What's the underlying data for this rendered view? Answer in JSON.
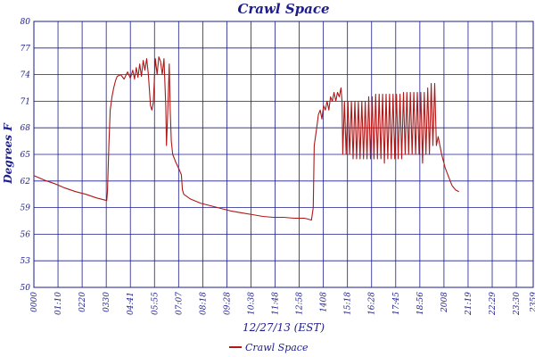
{
  "chart_data": {
    "type": "line",
    "title": "Crawl Space",
    "xlabel": "12/27/13 (EST)",
    "ylabel": "Degrees F",
    "ylim": [
      50,
      80
    ],
    "yticks": [
      50,
      53,
      56,
      59,
      62,
      65,
      68,
      71,
      74,
      77,
      80
    ],
    "xlim": [
      "0000",
      "2359"
    ],
    "xticks": [
      "0000",
      "01:10",
      "0220",
      "0330",
      "04:41",
      "05:55",
      "07:07",
      "08:18",
      "09:28",
      "10:38",
      "11:48",
      "12:58",
      "1408",
      "15:18",
      "16:28",
      "17:45",
      "18:56",
      "2008",
      "21:19",
      "22:29",
      "23:30",
      "2359"
    ],
    "grid": true,
    "legend_position": "bottom",
    "colors": {
      "series": "#b01818",
      "grid": "#1c1c8c",
      "text": "#1c1c8c"
    },
    "series": [
      {
        "name": "Crawl Space",
        "points": [
          [
            0,
            62.6
          ],
          [
            30,
            62.1
          ],
          [
            60,
            61.7
          ],
          [
            90,
            61.2
          ],
          [
            120,
            60.8
          ],
          [
            150,
            60.5
          ],
          [
            180,
            60.1
          ],
          [
            200,
            59.9
          ],
          [
            210,
            59.8
          ],
          [
            212,
            60.8
          ],
          [
            216,
            66
          ],
          [
            220,
            70
          ],
          [
            225,
            71.5
          ],
          [
            230,
            72.5
          ],
          [
            235,
            73.3
          ],
          [
            240,
            73.8
          ],
          [
            250,
            74
          ],
          [
            260,
            73.5
          ],
          [
            265,
            73.9
          ],
          [
            270,
            74.3
          ],
          [
            278,
            73.6
          ],
          [
            285,
            74.5
          ],
          [
            290,
            73.5
          ],
          [
            295,
            74.8
          ],
          [
            300,
            73.7
          ],
          [
            305,
            75.2
          ],
          [
            310,
            73.8
          ],
          [
            315,
            75.6
          ],
          [
            320,
            74.5
          ],
          [
            325,
            75.8
          ],
          [
            330,
            74
          ],
          [
            336,
            70.5
          ],
          [
            340,
            70
          ],
          [
            344,
            70.8
          ],
          [
            350,
            75.8
          ],
          [
            355,
            74
          ],
          [
            360,
            76
          ],
          [
            365,
            75.5
          ],
          [
            370,
            74
          ],
          [
            375,
            75.8
          ],
          [
            380,
            70.5
          ],
          [
            382,
            66
          ],
          [
            386,
            70
          ],
          [
            390,
            75.2
          ],
          [
            393,
            70
          ],
          [
            396,
            66.5
          ],
          [
            400,
            65
          ],
          [
            410,
            64
          ],
          [
            420,
            63.2
          ],
          [
            425,
            62.7
          ],
          [
            428,
            61
          ],
          [
            432,
            60.5
          ],
          [
            450,
            60
          ],
          [
            480,
            59.5
          ],
          [
            510,
            59.2
          ],
          [
            540,
            58.9
          ],
          [
            570,
            58.6
          ],
          [
            600,
            58.4
          ],
          [
            630,
            58.2
          ],
          [
            660,
            58.0
          ],
          [
            690,
            57.9
          ],
          [
            720,
            57.9
          ],
          [
            750,
            57.8
          ],
          [
            780,
            57.8
          ],
          [
            800,
            57.6
          ],
          [
            805,
            59
          ],
          [
            808,
            66
          ],
          [
            815,
            68
          ],
          [
            820,
            69.5
          ],
          [
            825,
            70
          ],
          [
            830,
            69
          ],
          [
            835,
            70.5
          ],
          [
            840,
            70
          ],
          [
            845,
            71
          ],
          [
            850,
            70
          ],
          [
            855,
            71.5
          ],
          [
            860,
            71
          ],
          [
            865,
            72
          ],
          [
            870,
            71
          ],
          [
            875,
            72
          ],
          [
            880,
            71.5
          ],
          [
            885,
            72.5
          ],
          [
            888,
            71
          ],
          [
            890,
            65
          ],
          [
            895,
            71
          ],
          [
            900,
            65
          ],
          [
            905,
            71
          ],
          [
            910,
            65
          ],
          [
            915,
            71
          ],
          [
            920,
            64.5
          ],
          [
            925,
            71
          ],
          [
            930,
            64.5
          ],
          [
            935,
            71
          ],
          [
            940,
            64.5
          ],
          [
            945,
            71
          ],
          [
            950,
            64.5
          ],
          [
            955,
            71
          ],
          [
            960,
            64.5
          ],
          [
            965,
            71.5
          ],
          [
            970,
            64.5
          ],
          [
            975,
            71.5
          ],
          [
            980,
            64.5
          ],
          [
            985,
            71.8
          ],
          [
            990,
            64.5
          ],
          [
            995,
            71.8
          ],
          [
            1000,
            64.5
          ],
          [
            1005,
            71.8
          ],
          [
            1010,
            64
          ],
          [
            1015,
            71.8
          ],
          [
            1020,
            64.5
          ],
          [
            1025,
            71.8
          ],
          [
            1030,
            64.5
          ],
          [
            1035,
            71.8
          ],
          [
            1040,
            64.5
          ],
          [
            1045,
            71.8
          ],
          [
            1050,
            64.5
          ],
          [
            1055,
            71.8
          ],
          [
            1060,
            64.5
          ],
          [
            1065,
            72
          ],
          [
            1070,
            65
          ],
          [
            1075,
            72
          ],
          [
            1080,
            65
          ],
          [
            1085,
            72
          ],
          [
            1090,
            65
          ],
          [
            1095,
            72
          ],
          [
            1100,
            65
          ],
          [
            1105,
            72
          ],
          [
            1110,
            65
          ],
          [
            1115,
            72
          ],
          [
            1120,
            64
          ],
          [
            1125,
            72
          ],
          [
            1130,
            65
          ],
          [
            1135,
            72.5
          ],
          [
            1140,
            65
          ],
          [
            1145,
            73
          ],
          [
            1150,
            66
          ],
          [
            1155,
            73
          ],
          [
            1160,
            66
          ],
          [
            1165,
            67
          ],
          [
            1175,
            65
          ],
          [
            1185,
            63.5
          ],
          [
            1195,
            62.5
          ],
          [
            1205,
            61.5
          ],
          [
            1215,
            61
          ],
          [
            1225,
            60.8
          ]
        ]
      }
    ]
  }
}
